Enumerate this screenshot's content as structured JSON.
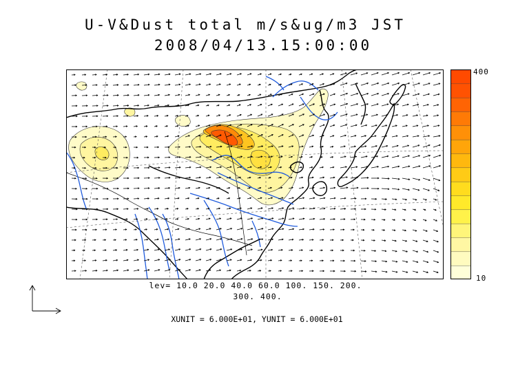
{
  "title_line1": "U-V&Dust total m/s&ug/m3 JST",
  "title_line2": "2008/04/13.15:00:00",
  "colorbar": {
    "max_label": "400",
    "min_label": "10",
    "colors": [
      "#ffffd9",
      "#fffbbf",
      "#fff7a3",
      "#fff57a",
      "#fff24a",
      "#ffe92a",
      "#ffdc1e",
      "#ffcb16",
      "#ffb80e",
      "#ffa50a",
      "#ff9008",
      "#ff7a06",
      "#ff6404",
      "#ff5202",
      "#ff4a00"
    ]
  },
  "contour_levels_line1": "lev= 10.0 20.0 40.0 60.0 100. 150. 200.",
  "contour_levels_line2": "300. 400.",
  "unit_vector_label": "XUNIT = 6.000E+01, YUNIT = 6.000E+01",
  "colors": {
    "coastline": "#000000",
    "rivers": "#1e5adc",
    "vectors": "#000000"
  }
}
